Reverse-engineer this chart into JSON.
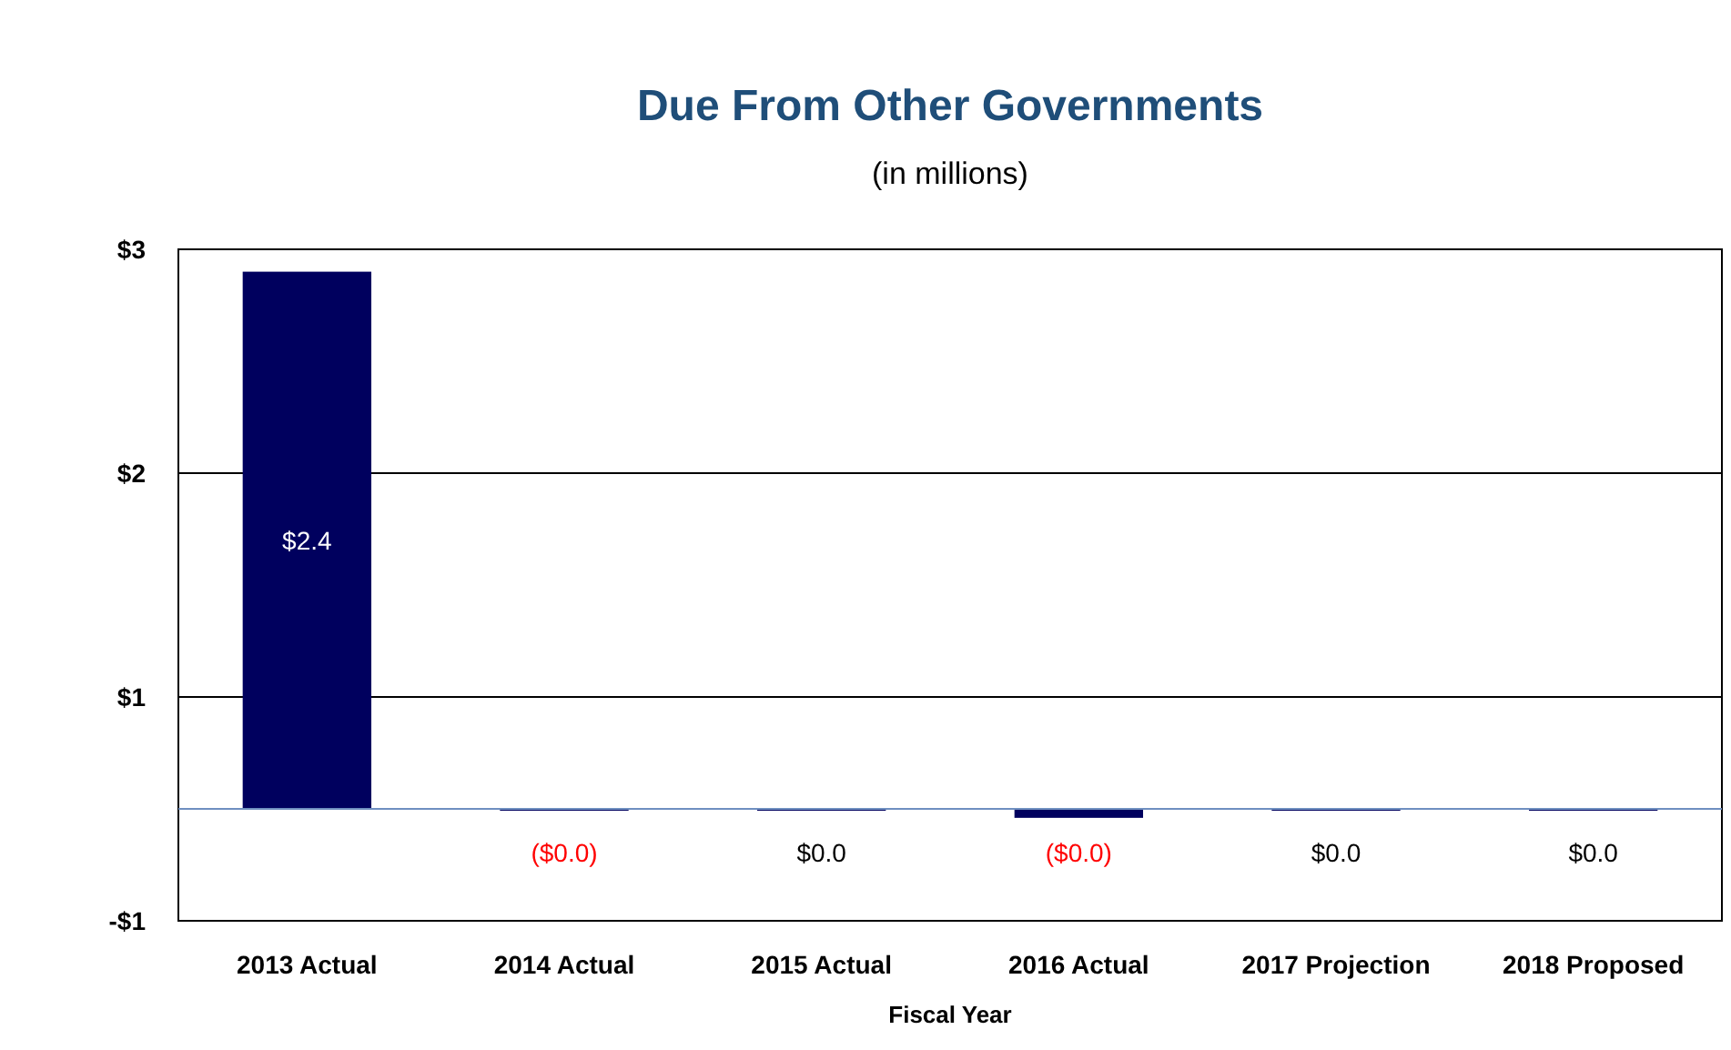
{
  "chart_data": {
    "type": "bar",
    "title": "Due From Other Governments",
    "subtitle": "(in millions)",
    "xlabel": "Fiscal Year",
    "categories": [
      "2013 Actual",
      "2014 Actual",
      "2015 Actual",
      "2016 Actual",
      "2017 Projection",
      "2018 Proposed"
    ],
    "values": [
      2.4,
      -0.005,
      0,
      -0.04,
      0,
      0
    ],
    "value_labels": [
      "$2.4",
      "($0.0)",
      "$0.0",
      "($0.0)",
      "$0.0",
      "$0.0"
    ],
    "color": "#00005e",
    "ylim": [
      -0.5,
      2.5
    ],
    "yticks": [
      {
        "value": 2.5,
        "label": "$3"
      },
      {
        "value": 1.5,
        "label": "$2"
      },
      {
        "value": 0.5,
        "label": "$1"
      },
      {
        "value": -0.5,
        "label": "-$1"
      }
    ],
    "grid": "y",
    "ref_lines": [
      {
        "axis": "y",
        "value": 0,
        "color": "#6f8fc0"
      }
    ]
  }
}
